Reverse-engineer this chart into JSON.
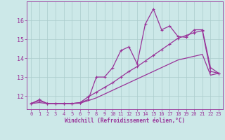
{
  "xlabel": "Windchill (Refroidissement éolien,°C)",
  "bg_color": "#cce8e8",
  "grid_color": "#aacccc",
  "line_color": "#993399",
  "x_ticks": [
    0,
    1,
    2,
    3,
    4,
    5,
    6,
    7,
    8,
    9,
    10,
    11,
    12,
    13,
    14,
    15,
    16,
    17,
    18,
    19,
    20,
    21,
    22,
    23
  ],
  "y_ticks": [
    12,
    13,
    14,
    15,
    16
  ],
  "ylim": [
    11.3,
    17.0
  ],
  "xlim": [
    -0.5,
    23.5
  ],
  "line1_x": [
    0,
    1,
    2,
    3,
    4,
    5,
    6,
    7,
    8,
    9,
    10,
    11,
    12,
    13,
    14,
    15,
    16,
    17,
    18,
    19,
    20,
    21,
    22,
    23
  ],
  "line1_y": [
    11.6,
    11.8,
    11.6,
    11.6,
    11.6,
    11.6,
    11.65,
    11.8,
    13.0,
    13.0,
    13.5,
    14.4,
    14.6,
    13.7,
    15.8,
    16.6,
    15.5,
    15.7,
    15.15,
    15.1,
    15.5,
    15.5,
    13.5,
    13.2
  ],
  "line2_x": [
    0,
    1,
    2,
    3,
    4,
    5,
    6,
    7,
    8,
    9,
    10,
    11,
    12,
    13,
    14,
    15,
    16,
    17,
    18,
    19,
    20,
    21,
    22,
    23
  ],
  "line2_y": [
    11.6,
    11.75,
    11.6,
    11.6,
    11.6,
    11.6,
    11.65,
    11.95,
    12.2,
    12.45,
    12.7,
    13.0,
    13.3,
    13.55,
    13.85,
    14.15,
    14.45,
    14.75,
    15.05,
    15.2,
    15.35,
    15.45,
    13.3,
    13.2
  ],
  "line3_x": [
    0,
    1,
    2,
    3,
    4,
    5,
    6,
    7,
    8,
    9,
    10,
    11,
    12,
    13,
    14,
    15,
    16,
    17,
    18,
    19,
    20,
    21,
    22,
    23
  ],
  "line3_y": [
    11.6,
    11.65,
    11.6,
    11.6,
    11.6,
    11.6,
    11.62,
    11.75,
    11.9,
    12.1,
    12.3,
    12.5,
    12.7,
    12.9,
    13.1,
    13.3,
    13.5,
    13.7,
    13.9,
    14.0,
    14.1,
    14.2,
    13.1,
    13.2
  ]
}
